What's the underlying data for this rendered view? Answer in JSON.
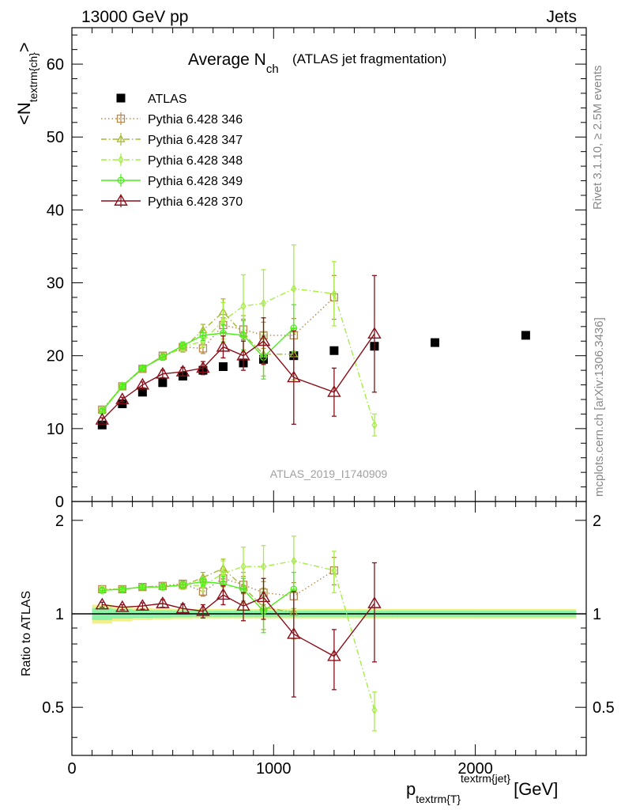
{
  "header": {
    "left": "13000 GeV pp",
    "right": "Jets"
  },
  "title": {
    "main": "Average N",
    "sub": "ch",
    "note": "(ATLAS jet fragmentation)"
  },
  "side_labels": {
    "rivet": "Rivet 3.1.10, ≥ 2.5M events",
    "mcplots": "mcplots.cern.ch [arXiv:1306.3436]"
  },
  "watermark": "ATLAS_2019_I1740909",
  "colors": {
    "data": "#000000",
    "p346": "#b5894e",
    "p347": "#a6ba2f",
    "p348": "#a6ee44",
    "p349": "#4cee1a",
    "p370": "#8a0f1a",
    "band_inner": "#8cf2a8",
    "band_outer": "#f3f08a"
  },
  "chart_data": [
    {
      "type": "scatter",
      "title": "Average N_ch (ATLAS jet fragmentation)",
      "ylabel_main": "<N",
      "ylabel_sub": "textrm{ch}",
      "ylabel_end": ">",
      "ylim": [
        0,
        65
      ],
      "yticks": [
        0,
        10,
        20,
        30,
        40,
        50,
        60
      ],
      "xlim": [
        0,
        2550
      ],
      "legend_position": "top-left",
      "series": [
        {
          "name": "ATLAS",
          "key": "data",
          "style": "data",
          "x": [
            150,
            250,
            350,
            450,
            550,
            650,
            750,
            850,
            950,
            1100,
            1300,
            1500,
            1800,
            2250
          ],
          "y": [
            10.5,
            13.4,
            15.0,
            16.3,
            17.2,
            18.0,
            18.5,
            19.0,
            19.5,
            20.0,
            20.7,
            21.3,
            21.8,
            22.8
          ]
        },
        {
          "name": "Pythia 6.428 346",
          "key": "p346",
          "style": "square-dotted",
          "x": [
            150,
            250,
            350,
            450,
            550,
            650,
            750,
            850,
            950,
            1100,
            1300
          ],
          "y": [
            12.6,
            15.8,
            18.2,
            20.0,
            21.2,
            21.0,
            24.2,
            23.6,
            22.8,
            22.8,
            28.0
          ],
          "err": [
            0.3,
            0.3,
            0.3,
            0.4,
            0.5,
            0.7,
            1.0,
            1.4,
            1.8,
            2.3,
            3.0
          ]
        },
        {
          "name": "Pythia 6.428 347",
          "key": "p347",
          "style": "triangle-dashdot",
          "x": [
            150,
            250,
            350,
            450,
            550,
            650,
            750,
            850,
            950,
            1100
          ],
          "y": [
            12.6,
            15.8,
            18.2,
            20.0,
            21.0,
            23.5,
            26.0,
            23.0,
            20.2,
            20.2
          ],
          "err": [
            0.3,
            0.3,
            0.3,
            0.4,
            0.5,
            0.8,
            1.8,
            2.5,
            3.0,
            3.5
          ]
        },
        {
          "name": "Pythia 6.428 348",
          "key": "p348",
          "style": "diamond-dashdot",
          "x": [
            150,
            250,
            350,
            450,
            550,
            650,
            750,
            850,
            950,
            1100,
            1300,
            1500
          ],
          "y": [
            12.5,
            15.9,
            18.3,
            19.8,
            21.2,
            22.0,
            24.8,
            26.8,
            27.2,
            29.2,
            28.5,
            10.5
          ],
          "err": [
            0.3,
            0.3,
            0.3,
            0.4,
            0.5,
            0.8,
            2.5,
            4.3,
            4.6,
            6.0,
            4.4,
            1.5
          ]
        },
        {
          "name": "Pythia 6.428 349",
          "key": "p349",
          "style": "circle-solid",
          "x": [
            150,
            250,
            350,
            450,
            550,
            650,
            750,
            850,
            950,
            1100
          ],
          "y": [
            12.4,
            15.8,
            18.3,
            19.8,
            21.4,
            22.8,
            23.1,
            22.8,
            19.8,
            23.8
          ],
          "err": [
            0.3,
            0.3,
            0.3,
            0.4,
            0.5,
            0.7,
            1.2,
            2.0,
            3.0,
            3.2
          ]
        },
        {
          "name": "Pythia 6.428 370",
          "key": "p370",
          "style": "triangle-solid",
          "x": [
            150,
            250,
            350,
            450,
            550,
            650,
            750,
            850,
            950,
            1100,
            1300,
            1500
          ],
          "y": [
            11.2,
            14.0,
            16.0,
            17.5,
            17.8,
            18.3,
            21.2,
            20.0,
            22.0,
            17.0,
            15.0,
            23.0
          ],
          "err": [
            0.3,
            0.3,
            0.4,
            0.5,
            0.6,
            0.9,
            1.5,
            2.0,
            3.2,
            6.4,
            3.3,
            8.0
          ]
        }
      ]
    },
    {
      "type": "scatter",
      "ylabel": "Ratio to ATLAS",
      "xlabel_main": "p",
      "xlabel_sub": "textrm{T}",
      "xlabel_sup": "textrm{jet}",
      "xlabel_unit": "[GeV]",
      "ylim": [
        0.35,
        2.3
      ],
      "yticks": [
        0.5,
        1,
        2
      ],
      "xticks": [
        0,
        1000,
        2000
      ],
      "xlim": [
        0,
        2550
      ],
      "reference": 1.0,
      "band": {
        "x": [
          100,
          200,
          300,
          400,
          500,
          600,
          700,
          800,
          900,
          1000,
          1200,
          1400,
          1600,
          2000,
          2500
        ],
        "inner": [
          0.045,
          0.035,
          0.03,
          0.028,
          0.026,
          0.025,
          0.025,
          0.025,
          0.025,
          0.025,
          0.025,
          0.025,
          0.025,
          0.025
        ],
        "outer": [
          0.07,
          0.055,
          0.045,
          0.04,
          0.038,
          0.036,
          0.036,
          0.036,
          0.036,
          0.036,
          0.036,
          0.036,
          0.036,
          0.036
        ]
      },
      "series": [
        {
          "name": "Pythia 6.428 346",
          "key": "p346",
          "style": "square-dotted",
          "x": [
            150,
            250,
            350,
            450,
            550,
            650,
            750,
            850,
            950,
            1100,
            1300
          ],
          "y": [
            1.2,
            1.2,
            1.22,
            1.23,
            1.25,
            1.18,
            1.3,
            1.24,
            1.17,
            1.14,
            1.38
          ],
          "err": [
            0.02,
            0.02,
            0.02,
            0.025,
            0.03,
            0.04,
            0.06,
            0.08,
            0.1,
            0.12,
            0.14
          ]
        },
        {
          "name": "Pythia 6.428 347",
          "key": "p347",
          "style": "triangle-dashdot",
          "x": [
            150,
            250,
            350,
            450,
            550,
            650,
            750,
            850,
            950,
            1100
          ],
          "y": [
            1.2,
            1.2,
            1.22,
            1.23,
            1.23,
            1.31,
            1.4,
            1.22,
            1.05,
            1.01
          ],
          "err": [
            0.02,
            0.02,
            0.02,
            0.025,
            0.03,
            0.05,
            0.1,
            0.14,
            0.16,
            0.18
          ]
        },
        {
          "name": "Pythia 6.428 348",
          "key": "p348",
          "style": "diamond-dashdot",
          "x": [
            150,
            250,
            350,
            450,
            550,
            650,
            750,
            850,
            950,
            1100,
            1300,
            1500
          ],
          "y": [
            1.2,
            1.2,
            1.22,
            1.22,
            1.24,
            1.23,
            1.35,
            1.42,
            1.42,
            1.48,
            1.38,
            0.49
          ],
          "err": [
            0.02,
            0.02,
            0.02,
            0.025,
            0.03,
            0.05,
            0.13,
            0.22,
            0.24,
            0.3,
            0.21,
            0.07
          ]
        },
        {
          "name": "Pythia 6.428 349",
          "key": "p349",
          "style": "circle-solid",
          "x": [
            150,
            250,
            350,
            450,
            550,
            650,
            750,
            850,
            950,
            1100
          ],
          "y": [
            1.19,
            1.2,
            1.22,
            1.22,
            1.24,
            1.27,
            1.25,
            1.2,
            1.02,
            1.2
          ],
          "err": [
            0.02,
            0.02,
            0.02,
            0.025,
            0.03,
            0.04,
            0.07,
            0.1,
            0.15,
            0.16
          ]
        },
        {
          "name": "Pythia 6.428 370",
          "key": "p370",
          "style": "triangle-solid",
          "x": [
            150,
            250,
            350,
            450,
            550,
            650,
            750,
            850,
            950,
            1100,
            1300,
            1500
          ],
          "y": [
            1.07,
            1.05,
            1.06,
            1.08,
            1.04,
            1.02,
            1.15,
            1.06,
            1.13,
            0.86,
            0.73,
            1.08
          ],
          "err": [
            0.02,
            0.02,
            0.025,
            0.03,
            0.035,
            0.05,
            0.08,
            0.11,
            0.17,
            0.32,
            0.16,
            0.38
          ]
        }
      ]
    }
  ]
}
